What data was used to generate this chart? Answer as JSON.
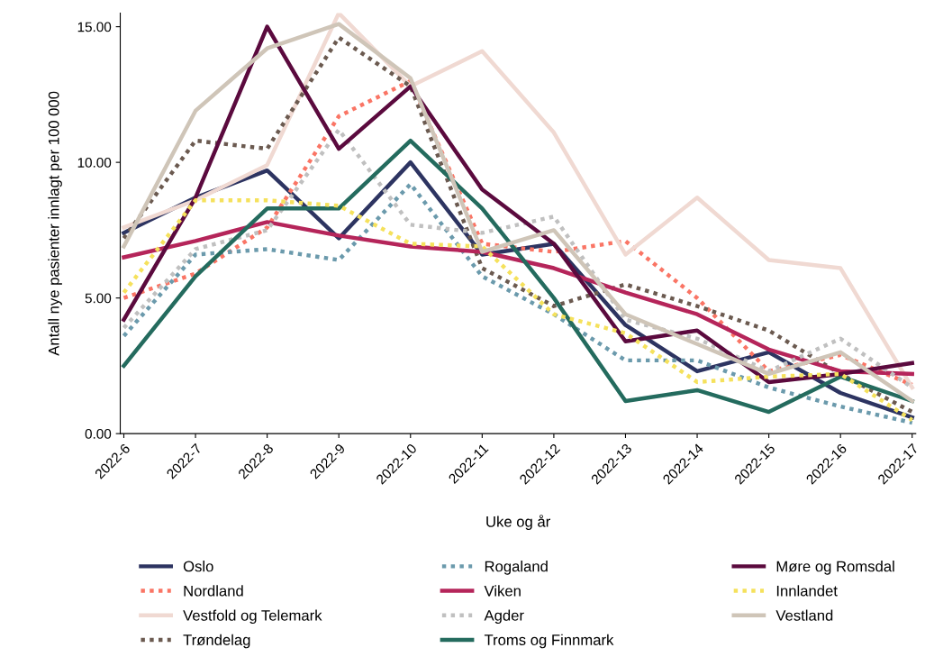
{
  "chart_data": {
    "type": "line",
    "xlabel": "Uke og år",
    "ylabel": "Antall nye pasienter innlagt per 100 000",
    "categories": [
      "2022-6",
      "2022-7",
      "2022-8",
      "2022-9",
      "2022-10",
      "2022-11",
      "2022-12",
      "2022-13",
      "2022-14",
      "2022-15",
      "2022-16",
      "2022-17"
    ],
    "ylim": [
      0,
      15.5
    ],
    "yticks": [
      {
        "value": 0,
        "label": "0.00"
      },
      {
        "value": 5,
        "label": "5.00"
      },
      {
        "value": 10,
        "label": "10.00"
      },
      {
        "value": 15,
        "label": "15.00"
      }
    ],
    "grid": false,
    "legend": "bottom",
    "marker": "none",
    "series": [
      {
        "name": "Oslo",
        "color": "#2d3461",
        "line_style": "solid",
        "values": [
          7.4,
          8.7,
          9.7,
          7.2,
          10.0,
          6.6,
          7.0,
          4.0,
          2.3,
          3.0,
          1.5,
          0.6
        ]
      },
      {
        "name": "Nordland",
        "color": "#fa7565",
        "line_style": "dotted",
        "values": [
          5.0,
          5.9,
          7.6,
          11.7,
          13.0,
          7.0,
          6.7,
          7.1,
          5.0,
          2.3,
          2.9,
          1.8
        ]
      },
      {
        "name": "Vestfold og Telemark",
        "color": "#f0d9d2",
        "line_style": "solid",
        "values": [
          7.6,
          8.6,
          9.9,
          15.5,
          12.8,
          14.1,
          11.1,
          6.6,
          8.7,
          6.4,
          6.1,
          1.7
        ]
      },
      {
        "name": "Trøndelag",
        "color": "#6b5a50",
        "line_style": "dotted",
        "values": [
          7.2,
          10.8,
          10.5,
          14.6,
          12.8,
          6.1,
          4.7,
          5.5,
          4.7,
          3.8,
          2.2,
          0.8
        ]
      },
      {
        "name": "Rogaland",
        "color": "#6b9aac",
        "line_style": "dotted",
        "values": [
          3.6,
          6.6,
          6.8,
          6.4,
          9.2,
          5.8,
          4.4,
          2.7,
          2.7,
          1.7,
          1.0,
          0.4
        ]
      },
      {
        "name": "Viken",
        "color": "#b5255a",
        "line_style": "solid",
        "values": [
          6.5,
          7.1,
          7.8,
          7.3,
          6.9,
          6.7,
          6.1,
          5.2,
          4.4,
          3.1,
          2.3,
          2.2
        ]
      },
      {
        "name": "Agder",
        "color": "#c0c0c0",
        "line_style": "dotted",
        "values": [
          3.9,
          6.8,
          7.5,
          11.2,
          7.7,
          7.4,
          8.0,
          4.2,
          3.5,
          2.3,
          3.5,
          1.7
        ]
      },
      {
        "name": "Troms og Finnmark",
        "color": "#246b5e",
        "line_style": "solid",
        "values": [
          2.5,
          5.8,
          8.3,
          8.3,
          10.8,
          8.3,
          5.0,
          1.2,
          1.6,
          0.8,
          2.1,
          1.2
        ]
      },
      {
        "name": "Møre og Romsdal",
        "color": "#5b0a3e",
        "line_style": "solid",
        "values": [
          4.2,
          8.7,
          15.0,
          10.5,
          12.8,
          9.0,
          7.0,
          3.4,
          3.8,
          1.9,
          2.2,
          2.6
        ]
      },
      {
        "name": "Innlandet",
        "color": "#f5e15c",
        "line_style": "dotted",
        "values": [
          5.2,
          8.6,
          8.6,
          8.4,
          7.0,
          6.9,
          4.4,
          3.7,
          1.9,
          2.1,
          2.2,
          0.5
        ]
      },
      {
        "name": "Vestland",
        "color": "#cfc5b8",
        "line_style": "solid",
        "values": [
          6.9,
          11.9,
          14.2,
          15.1,
          13.1,
          6.7,
          7.5,
          4.4,
          3.3,
          2.2,
          3.0,
          1.2
        ]
      }
    ]
  }
}
